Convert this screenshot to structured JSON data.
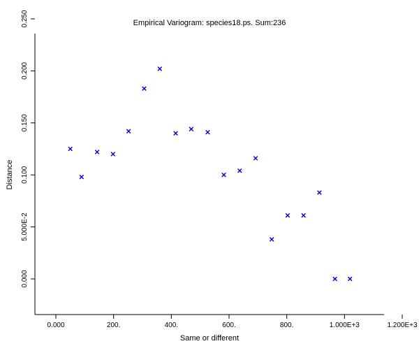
{
  "chart_data": {
    "type": "scatter",
    "title": "Empirical Variogram: species18.ps. Sum:236",
    "xlabel": "Same or different",
    "ylabel": "Distance",
    "xlim": [
      -70,
      1300
    ],
    "ylim": [
      -0.035,
      0.25
    ],
    "x_ticks": [
      {
        "value": 0,
        "label": "0.000"
      },
      {
        "value": 200,
        "label": "200."
      },
      {
        "value": 400,
        "label": "400."
      },
      {
        "value": 600,
        "label": "600."
      },
      {
        "value": 800,
        "label": "800."
      },
      {
        "value": 1000,
        "label": "1.000E+3"
      },
      {
        "value": 1200,
        "label": "1.200E+3"
      }
    ],
    "y_ticks": [
      {
        "value": 0.0,
        "label": "0.000"
      },
      {
        "value": 0.05,
        "label": "5.000E-2"
      },
      {
        "value": 0.1,
        "label": "0.100"
      },
      {
        "value": 0.15,
        "label": "0.150"
      },
      {
        "value": 0.2,
        "label": "0.200"
      },
      {
        "value": 0.25,
        "label": "0.250"
      }
    ],
    "grid": false,
    "marker": "x",
    "marker_color": "#0000cc",
    "series": [
      {
        "points": [
          {
            "x": 50,
            "y": 0.125
          },
          {
            "x": 89,
            "y": 0.098
          },
          {
            "x": 143,
            "y": 0.122
          },
          {
            "x": 198,
            "y": 0.12
          },
          {
            "x": 252,
            "y": 0.142
          },
          {
            "x": 306,
            "y": 0.183
          },
          {
            "x": 360,
            "y": 0.202
          },
          {
            "x": 415,
            "y": 0.14
          },
          {
            "x": 469,
            "y": 0.144
          },
          {
            "x": 526,
            "y": 0.141
          },
          {
            "x": 582,
            "y": 0.1
          },
          {
            "x": 637,
            "y": 0.104
          },
          {
            "x": 692,
            "y": 0.116
          },
          {
            "x": 748,
            "y": 0.038
          },
          {
            "x": 803,
            "y": 0.061
          },
          {
            "x": 858,
            "y": 0.061
          },
          {
            "x": 913,
            "y": 0.083
          },
          {
            "x": 967,
            "y": 0.0
          },
          {
            "x": 1019,
            "y": 0.0
          }
        ]
      }
    ]
  }
}
